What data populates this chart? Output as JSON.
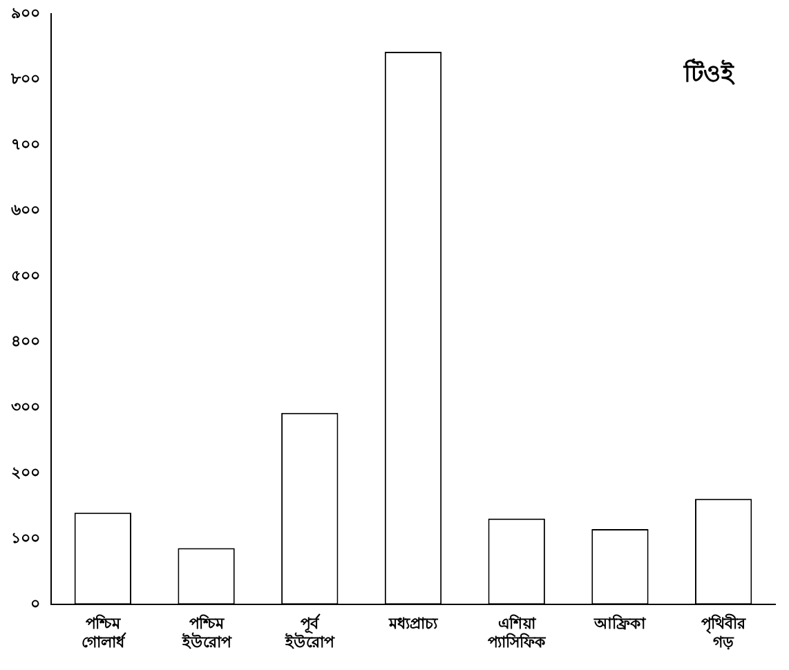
{
  "chart_data": {
    "type": "bar",
    "categories": [
      "পশ্চিম গোলার্ধ",
      "পশ্চিম ইউরোপ",
      "পূর্ব ইউরোপ",
      "মধ্যপ্রাচ্য",
      "এশিয়া প্যাসিফিক",
      "আফ্রিকা",
      "পৃথিবীর গড়"
    ],
    "values": [
      140,
      86,
      292,
      842,
      131,
      115,
      161
    ],
    "color": "#ffffff",
    "ylim": [
      0,
      900
    ],
    "yticks": [
      {
        "value": 0,
        "label": "০"
      },
      {
        "value": 100,
        "label": "১০০"
      },
      {
        "value": 200,
        "label": "২০০"
      },
      {
        "value": 300,
        "label": "৩০০"
      },
      {
        "value": 400,
        "label": "৪০০"
      },
      {
        "value": 500,
        "label": "৫০০"
      },
      {
        "value": 600,
        "label": "৬০০"
      },
      {
        "value": 700,
        "label": "৭০০"
      },
      {
        "value": 800,
        "label": "৮০০"
      },
      {
        "value": 900,
        "label": "৯০০"
      }
    ],
    "annotations": [
      "টিওই"
    ],
    "grid": false,
    "legend": false
  }
}
